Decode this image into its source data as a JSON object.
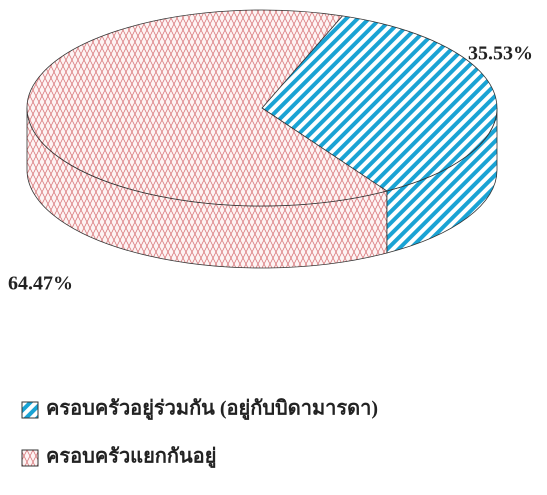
{
  "chart_data": {
    "type": "pie",
    "categories": [
      "ครอบครัวอยู่ร่วมกัน (อยู่กับบิดามารดา)",
      "ครอบครัวแยกกันอยู่"
    ],
    "values": [
      35.53,
      64.47
    ],
    "value_labels": [
      "35.53%",
      "64.47%"
    ],
    "colors": [
      "#1aa3d4",
      "#d9777a"
    ]
  }
}
